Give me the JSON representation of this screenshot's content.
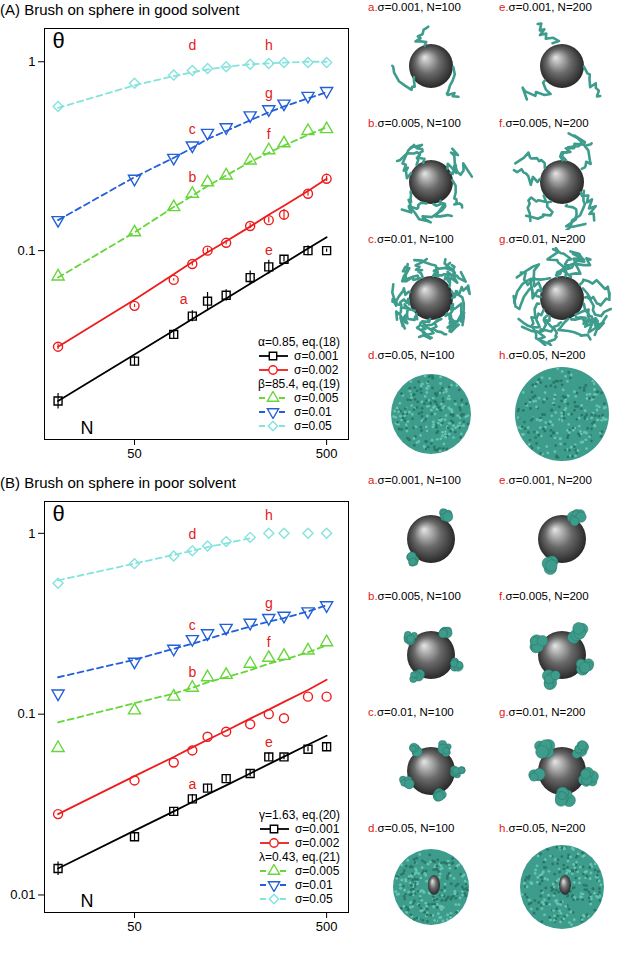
{
  "chart_data": [
    {
      "type": "scatter",
      "title": "(A) Brush on sphere in good solvent",
      "x_label": "N",
      "y_label": "θ",
      "log": true,
      "legend": "lower right",
      "xlim": [
        17,
        650
      ],
      "ylim": [
        0.01,
        1.5
      ],
      "xticks": [
        50,
        500
      ],
      "yticks": [
        0.1,
        1
      ],
      "x": [
        20,
        50,
        80,
        100,
        120,
        150,
        200,
        250,
        300,
        400,
        500
      ],
      "series": [
        {
          "name": "σ=0.001",
          "group": "α=0.85, eq.(18)",
          "color": "#000000",
          "marker": "square",
          "line_style": "solid",
          "values": [
            0.016,
            0.026,
            0.036,
            0.045,
            0.054,
            0.058,
            0.072,
            0.082,
            0.09,
            0.1,
            0.1
          ],
          "errors": [
            0.0015,
            0.0015,
            0.002,
            0.003,
            0.006,
            0.004,
            0.006,
            0.007,
            0.003,
            0.006,
            0.002
          ],
          "fit": [
            0.016,
            0.0282,
            0.0378,
            0.0434,
            0.0486,
            0.0558,
            0.0667,
            0.0766,
            0.0858,
            0.1025,
            0.1177
          ]
        },
        {
          "name": "σ=0.002",
          "group": "α=0.85, eq.(18)",
          "color": "#ee1c1c",
          "marker": "circle",
          "line_style": "solid",
          "values": [
            0.031,
            0.051,
            0.07,
            0.085,
            0.1,
            0.11,
            0.135,
            0.145,
            0.155,
            0.2,
            0.24
          ],
          "errors": [
            0.001,
            0.001,
            0.001,
            0.002,
            0.003,
            0.003,
            0.004,
            0.005,
            0.01,
            0.006,
            0.008
          ],
          "fit": [
            0.031,
            0.055,
            0.075,
            0.087,
            0.098,
            0.112,
            0.134,
            0.155,
            0.173,
            0.207,
            0.24
          ]
        },
        {
          "name": "σ=0.005",
          "group": "β=85.4, eq.(19)",
          "color": "#66d63a",
          "marker": "triangle-up",
          "line_style": "dashed",
          "values": [
            0.073,
            0.125,
            0.17,
            0.2,
            0.23,
            0.25,
            0.3,
            0.34,
            0.37,
            0.43,
            0.44
          ],
          "fit": [
            0.072,
            0.125,
            0.17,
            0.195,
            0.22,
            0.25,
            0.295,
            0.33,
            0.36,
            0.41,
            0.45
          ]
        },
        {
          "name": "σ=0.01",
          "group": "β=85.4, eq.(19)",
          "color": "#2160d8",
          "marker": "triangle-down",
          "line_style": "dashed",
          "values": [
            0.145,
            0.24,
            0.31,
            0.36,
            0.42,
            0.45,
            0.52,
            0.56,
            0.6,
            0.66,
            0.7
          ],
          "fit": [
            0.145,
            0.245,
            0.31,
            0.35,
            0.39,
            0.43,
            0.49,
            0.54,
            0.58,
            0.64,
            0.69
          ]
        },
        {
          "name": "σ=0.05",
          "group": "β=85.4, eq.(19)",
          "color": "#84e3dc",
          "marker": "diamond",
          "line_style": "dashed",
          "values": [
            0.58,
            0.77,
            0.85,
            0.9,
            0.92,
            0.94,
            0.97,
            0.98,
            0.99,
            0.99,
            0.99
          ],
          "fit": [
            0.57,
            0.75,
            0.84,
            0.88,
            0.91,
            0.94,
            0.97,
            0.98,
            0.99,
            1.0,
            1.0
          ]
        }
      ],
      "annotations": [
        {
          "text": "a",
          "x": 90,
          "y": 0.055
        },
        {
          "text": "b",
          "x": 100,
          "y": 0.245
        },
        {
          "text": "c",
          "x": 100,
          "y": 0.44
        },
        {
          "text": "d",
          "x": 100,
          "y": 1.22
        },
        {
          "text": "e",
          "x": 250,
          "y": 0.1
        },
        {
          "text": "f",
          "x": 250,
          "y": 0.41
        },
        {
          "text": "g",
          "x": 250,
          "y": 0.68
        },
        {
          "text": "h",
          "x": 250,
          "y": 1.22
        }
      ]
    },
    {
      "type": "scatter",
      "title": "(B) Brush on sphere in poor solvent",
      "x_label": "N",
      "y_label": "θ",
      "log": true,
      "legend": "lower right",
      "xlim": [
        17,
        650
      ],
      "ylim": [
        0.008,
        1.5
      ],
      "xticks": [
        50,
        500
      ],
      "yticks": [
        0.01,
        0.1,
        1
      ],
      "x": [
        20,
        50,
        80,
        100,
        120,
        150,
        200,
        250,
        300,
        400,
        500
      ],
      "series": [
        {
          "name": "σ=0.001",
          "group": "γ=1.63, eq.(20)",
          "color": "#000000",
          "marker": "square",
          "line_style": "solid",
          "values": [
            0.014,
            0.021,
            0.029,
            0.034,
            0.039,
            0.044,
            0.047,
            0.058,
            0.058,
            0.064,
            0.066
          ],
          "errors": [
            0.0012,
            0.001,
            0.0015,
            0.002,
            0.002,
            0.002,
            0.002,
            0.003,
            0.002,
            0.002,
            0.003
          ],
          "fit": [
            0.014,
            0.0227,
            0.029,
            0.0327,
            0.036,
            0.0404,
            0.047,
            0.0529,
            0.0582,
            0.0677,
            0.076
          ]
        },
        {
          "name": "σ=0.002",
          "group": "γ=1.63, eq.(20)",
          "color": "#ee1c1c",
          "marker": "circle",
          "line_style": "solid",
          "values": [
            0.028,
            0.043,
            0.054,
            0.063,
            0.075,
            0.08,
            0.088,
            0.1,
            0.095,
            0.125,
            0.125
          ],
          "fit": [
            0.028,
            0.0454,
            0.058,
            0.0655,
            0.0722,
            0.081,
            0.0945,
            0.106,
            0.117,
            0.136,
            0.155
          ]
        },
        {
          "name": "σ=0.005",
          "group": "λ=0.43, eq.(21)",
          "color": "#66d63a",
          "marker": "triangle-up",
          "line_style": "dashed",
          "values": [
            0.065,
            0.105,
            0.125,
            0.14,
            0.16,
            0.165,
            0.19,
            0.205,
            0.21,
            0.225,
            0.25
          ],
          "fit": [
            0.09,
            0.115,
            0.13,
            0.14,
            0.15,
            0.16,
            0.175,
            0.19,
            0.2,
            0.22,
            0.24
          ]
        },
        {
          "name": "σ=0.01",
          "group": "λ=0.43, eq.(21)",
          "color": "#2160d8",
          "marker": "triangle-down",
          "line_style": "dashed",
          "values": [
            0.13,
            0.195,
            0.23,
            0.26,
            0.28,
            0.3,
            0.32,
            0.34,
            0.35,
            0.37,
            0.4
          ],
          "fit": [
            0.16,
            0.2,
            0.23,
            0.245,
            0.26,
            0.28,
            0.305,
            0.325,
            0.34,
            0.37,
            0.4
          ]
        },
        {
          "name": "σ=0.05",
          "group": "λ=0.43, eq.(21)",
          "color": "#84e3dc",
          "marker": "diamond",
          "line_style": "dashed",
          "values": [
            0.53,
            0.68,
            0.75,
            0.8,
            0.85,
            0.9,
            0.95,
            1.0,
            1.0,
            1.0,
            1.0
          ],
          "fit": [
            0.55,
            0.68,
            0.76,
            0.8,
            0.84,
            0.88,
            0.94,
            null,
            null,
            null,
            null
          ]
        }
      ],
      "annotations": [
        {
          "text": "a",
          "x": 100,
          "y": 0.041
        },
        {
          "text": "b",
          "x": 100,
          "y": 0.17
        },
        {
          "text": "c",
          "x": 100,
          "y": 0.31
        },
        {
          "text": "d",
          "x": 100,
          "y": 0.98
        },
        {
          "text": "e",
          "x": 250,
          "y": 0.07
        },
        {
          "text": "f",
          "x": 250,
          "y": 0.25
        },
        {
          "text": "g",
          "x": 250,
          "y": 0.41
        },
        {
          "text": "h",
          "x": 250,
          "y": 1.25
        }
      ]
    }
  ],
  "snapshots": [
    [
      {
        "letter": "a.",
        "text": "σ=0.001, N=100"
      },
      {
        "letter": "b.",
        "text": "σ=0.005, N=100"
      },
      {
        "letter": "c.",
        "text": "σ=0.01, N=100"
      },
      {
        "letter": "d.",
        "text": "σ=0.05, N=100"
      },
      {
        "letter": "e.",
        "text": "σ=0.001, N=200"
      },
      {
        "letter": "f.",
        "text": "σ=0.005, N=200"
      },
      {
        "letter": "g.",
        "text": "σ=0.01, N=200"
      },
      {
        "letter": "h.",
        "text": "σ=0.05, N=200"
      }
    ],
    [
      {
        "letter": "a.",
        "text": "σ=0.001, N=100"
      },
      {
        "letter": "b.",
        "text": "σ=0.005, N=100"
      },
      {
        "letter": "c.",
        "text": "σ=0.01, N=100"
      },
      {
        "letter": "d.",
        "text": "σ=0.05, N=100"
      },
      {
        "letter": "e.",
        "text": "σ=0.001, N=200"
      },
      {
        "letter": "f.",
        "text": "σ=0.005, N=200"
      },
      {
        "letter": "g.",
        "text": "σ=0.01, N=200"
      },
      {
        "letter": "h.",
        "text": "σ=0.05, N=200"
      }
    ]
  ]
}
